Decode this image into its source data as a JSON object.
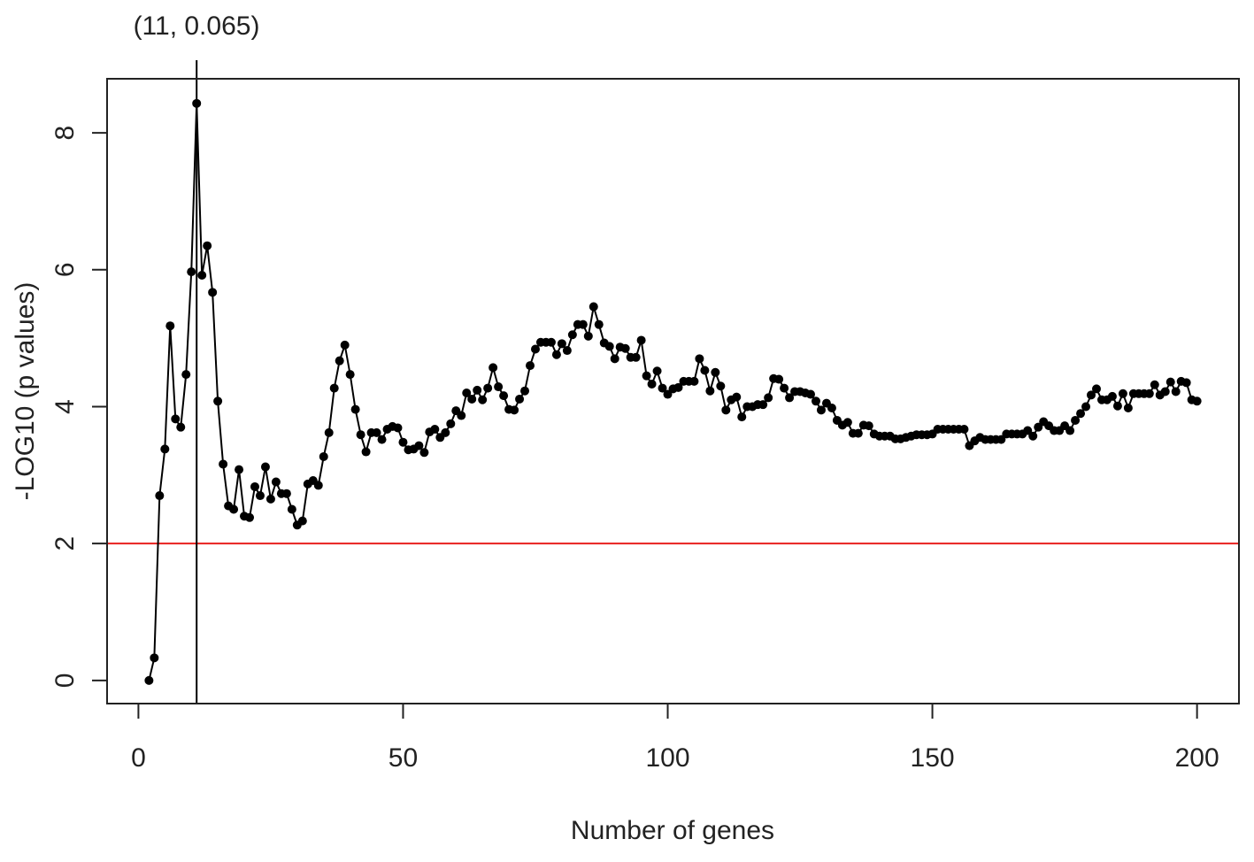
{
  "chart_data": {
    "type": "line",
    "xlabel": "Number of genes",
    "ylabel": "-LOG10 (p values)",
    "annotation": "(11, 0.065)",
    "vline": 11,
    "vline_color": "#000000",
    "hline": 2,
    "hline_color": "#e8201e",
    "xlim": [
      -5.92,
      207.92
    ],
    "ylim": [
      -0.338,
      8.79
    ],
    "xticks": [
      0,
      50,
      100,
      150,
      200
    ],
    "yticks": [
      0,
      2,
      4,
      6,
      8
    ],
    "series": [
      {
        "color": "#000000",
        "x": [
          2,
          3,
          4,
          5,
          6,
          7,
          8,
          9,
          10,
          11,
          12,
          13,
          14,
          15,
          16,
          17,
          18,
          19,
          20,
          21,
          22,
          23,
          24,
          25,
          26,
          27,
          28,
          29,
          30,
          31,
          32,
          33,
          34,
          35,
          36,
          37,
          38,
          39,
          40,
          41,
          42,
          43,
          44,
          45,
          46,
          47,
          48,
          49,
          50,
          51,
          52,
          53,
          54,
          55,
          56,
          57,
          58,
          59,
          60,
          61,
          62,
          63,
          64,
          65,
          66,
          67,
          68,
          69,
          70,
          71,
          72,
          73,
          74,
          75,
          76,
          77,
          78,
          79,
          80,
          81,
          82,
          83,
          84,
          85,
          86,
          87,
          88,
          89,
          90,
          91,
          92,
          93,
          94,
          95,
          96,
          97,
          98,
          99,
          100,
          101,
          102,
          103,
          104,
          105,
          106,
          107,
          108,
          109,
          110,
          111,
          112,
          113,
          114,
          115,
          116,
          117,
          118,
          119,
          120,
          121,
          122,
          123,
          124,
          125,
          126,
          127,
          128,
          129,
          130,
          131,
          132,
          133,
          134,
          135,
          136,
          137,
          138,
          139,
          140,
          141,
          142,
          143,
          144,
          145,
          146,
          147,
          148,
          149,
          150,
          151,
          152,
          153,
          154,
          155,
          156,
          157,
          158,
          159,
          160,
          161,
          162,
          163,
          164,
          165,
          166,
          167,
          168,
          169,
          170,
          171,
          172,
          173,
          174,
          175,
          176,
          177,
          178,
          179,
          180,
          181,
          182,
          183,
          184,
          185,
          186,
          187,
          188,
          189,
          190,
          191,
          192,
          193,
          194,
          195,
          196,
          197,
          198,
          199,
          200
        ],
        "values": [
          0,
          0.33,
          2.7,
          3.38,
          5.18,
          3.82,
          3.7,
          4.47,
          5.97,
          8.43,
          5.92,
          6.35,
          5.67,
          4.08,
          3.16,
          2.55,
          2.5,
          3.08,
          2.4,
          2.38,
          2.83,
          2.7,
          3.12,
          2.65,
          2.9,
          2.73,
          2.73,
          2.5,
          2.27,
          2.33,
          2.87,
          2.92,
          2.85,
          3.27,
          3.62,
          4.27,
          4.67,
          4.9,
          4.47,
          3.96,
          3.59,
          3.34,
          3.62,
          3.62,
          3.52,
          3.67,
          3.71,
          3.69,
          3.48,
          3.37,
          3.38,
          3.43,
          3.33,
          3.63,
          3.67,
          3.55,
          3.62,
          3.75,
          3.94,
          3.87,
          4.2,
          4.11,
          4.24,
          4.1,
          4.27,
          4.57,
          4.29,
          4.16,
          3.96,
          3.95,
          4.11,
          4.23,
          4.6,
          4.84,
          4.94,
          4.94,
          4.94,
          4.76,
          4.92,
          4.82,
          5.05,
          5.2,
          5.2,
          5.03,
          5.46,
          5.2,
          4.93,
          4.88,
          4.7,
          4.87,
          4.85,
          4.72,
          4.72,
          4.97,
          4.45,
          4.33,
          4.52,
          4.27,
          4.18,
          4.26,
          4.28,
          4.37,
          4.37,
          4.37,
          4.7,
          4.53,
          4.23,
          4.5,
          4.3,
          3.95,
          4.1,
          4.14,
          3.85,
          4.0,
          4.0,
          4.03,
          4.03,
          4.13,
          4.41,
          4.4,
          4.27,
          4.13,
          4.22,
          4.22,
          4.2,
          4.18,
          4.08,
          3.95,
          4.05,
          3.98,
          3.8,
          3.73,
          3.77,
          3.61,
          3.61,
          3.73,
          3.72,
          3.6,
          3.57,
          3.57,
          3.57,
          3.53,
          3.53,
          3.55,
          3.57,
          3.59,
          3.59,
          3.59,
          3.6,
          3.67,
          3.67,
          3.67,
          3.67,
          3.67,
          3.67,
          3.43,
          3.5,
          3.55,
          3.52,
          3.52,
          3.52,
          3.52,
          3.6,
          3.6,
          3.6,
          3.6,
          3.65,
          3.57,
          3.7,
          3.78,
          3.72,
          3.65,
          3.65,
          3.72,
          3.65,
          3.8,
          3.9,
          4.0,
          4.17,
          4.26,
          4.1,
          4.1,
          4.15,
          4.01,
          4.19,
          3.98,
          4.19,
          4.19,
          4.19,
          4.19,
          4.32,
          4.17,
          4.22,
          4.36,
          4.22,
          4.37,
          4.35,
          4.1,
          4.08
        ]
      }
    ]
  }
}
